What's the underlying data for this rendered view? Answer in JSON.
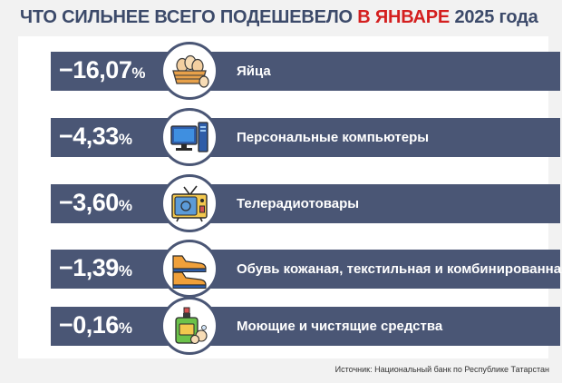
{
  "title": {
    "part1": "ЧТО СИЛЬНЕЕ ВСЕГО ПОДЕШЕВЕЛО",
    "accent": "В ЯНВАРЕ",
    "part2": "2025 года"
  },
  "colors": {
    "accent": "#d41f1f",
    "bar": "#4a5675",
    "title": "#3c4a6a"
  },
  "chart_data": {
    "type": "bar",
    "title": "ЧТО СИЛЬНЕЕ ВСЕГО ПОДЕШЕВЕЛО В ЯНВАРЕ 2025 года",
    "unit": "%",
    "categories": [
      "Яйца",
      "Персональные компьютеры",
      "Телерадиотовары",
      "Обувь кожаная, текстильная и комбинированная",
      "Моющие и чистящие средства"
    ],
    "values": [
      -16.07,
      -4.33,
      -3.6,
      -1.39,
      -0.16
    ],
    "value_labels": [
      "−16,07",
      "−4,33",
      "−3,60",
      "−1,39",
      "−0,16"
    ],
    "icons": [
      "eggs-basket-icon",
      "computer-icon",
      "tv-icon",
      "shoes-icon",
      "detergent-icon"
    ]
  },
  "source": "Источник: Национальный банк по Республике Татарстан"
}
